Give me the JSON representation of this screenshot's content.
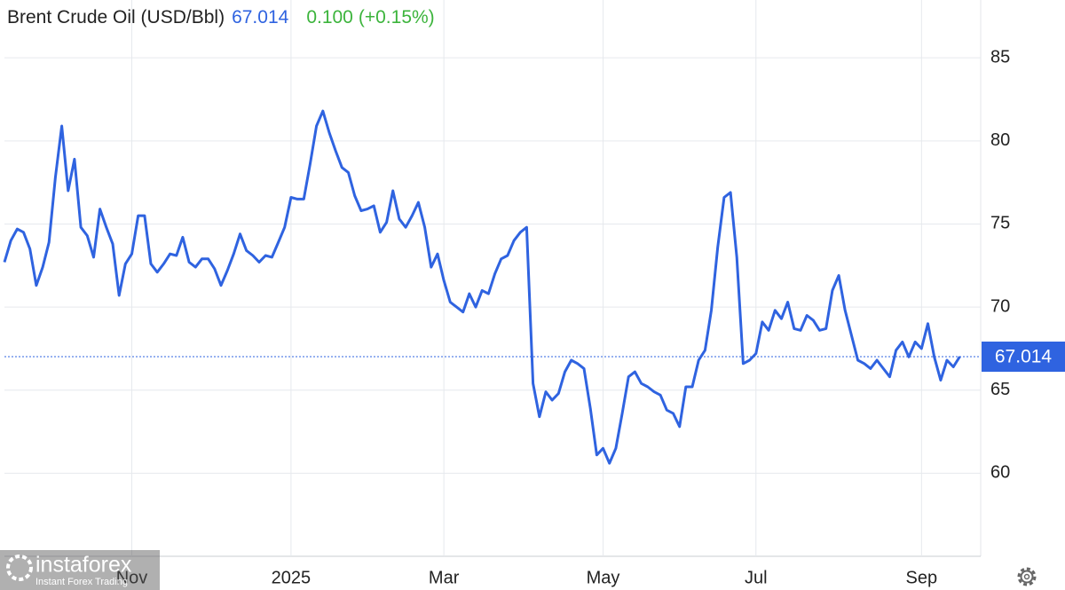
{
  "chart_data": {
    "type": "line",
    "title": "Brent Crude Oil (USD/Bbl)",
    "change": "0.100",
    "change_pct": "(+0.15%)",
    "watermark": {
      "brand": "instaforex",
      "tagline": "Instant Forex Trading"
    },
    "categories": [
      null,
      null,
      null,
      null,
      null,
      null,
      null,
      null,
      null,
      null,
      null,
      null,
      null,
      null,
      null,
      null,
      null,
      null,
      null,
      null,
      "Nov",
      null,
      null,
      null,
      null,
      null,
      null,
      null,
      null,
      null,
      null,
      null,
      null,
      null,
      null,
      null,
      null,
      null,
      null,
      null,
      null,
      null,
      null,
      null,
      null,
      "2025",
      null,
      null,
      null,
      null,
      null,
      null,
      null,
      null,
      null,
      null,
      null,
      null,
      null,
      null,
      null,
      null,
      null,
      null,
      null,
      null,
      null,
      null,
      null,
      "Mar",
      null,
      null,
      null,
      null,
      null,
      null,
      null,
      null,
      null,
      null,
      null,
      null,
      null,
      null,
      null,
      null,
      null,
      null,
      null,
      null,
      null,
      null,
      null,
      null,
      "May",
      null,
      null,
      null,
      null,
      null,
      null,
      null,
      null,
      null,
      null,
      null,
      null,
      null,
      null,
      null,
      null,
      null,
      null,
      null,
      null,
      null,
      null,
      null,
      "Jul",
      null,
      null,
      null,
      null,
      null,
      null,
      null,
      null,
      null,
      null,
      null,
      null,
      null,
      null,
      null,
      null,
      null,
      null,
      null,
      null,
      null,
      null,
      null,
      null,
      null,
      "Sep",
      null,
      null,
      null,
      null,
      null,
      null
    ],
    "series": [
      {
        "color": "#2f63e0",
        "values": [
          72.7,
          74.0,
          74.7,
          74.5,
          73.5,
          71.3,
          72.4,
          73.9,
          77.8,
          80.9,
          77.0,
          78.9,
          74.8,
          74.3,
          73.0,
          75.9,
          74.8,
          73.8,
          70.7,
          72.6,
          73.2,
          75.5,
          75.5,
          72.6,
          72.1,
          72.6,
          73.2,
          73.1,
          74.2,
          72.7,
          72.4,
          72.9,
          72.9,
          72.3,
          71.3,
          72.2,
          73.2,
          74.4,
          73.4,
          73.1,
          72.7,
          73.1,
          73.0,
          73.9,
          74.8,
          76.6,
          76.5,
          76.5,
          78.6,
          80.9,
          81.8,
          80.5,
          79.4,
          78.4,
          78.1,
          76.7,
          75.8,
          75.9,
          76.1,
          74.5,
          75.1,
          77.0,
          75.3,
          74.8,
          75.5,
          76.3,
          74.8,
          72.4,
          73.2,
          71.6,
          70.3,
          70.0,
          69.7,
          70.8,
          70.0,
          71.0,
          70.8,
          72.0,
          72.9,
          73.1,
          74.0,
          74.5,
          74.8,
          65.4,
          63.4,
          64.9,
          64.4,
          64.8,
          66.1,
          66.8,
          66.6,
          66.3,
          63.9,
          61.1,
          61.5,
          60.6,
          61.5,
          63.6,
          65.8,
          66.1,
          65.4,
          65.2,
          64.9,
          64.7,
          63.8,
          63.6,
          62.8,
          65.2,
          65.2,
          66.8,
          67.4,
          69.8,
          73.6,
          76.6,
          76.9,
          73.0,
          66.6,
          66.8,
          67.2,
          69.1,
          68.6,
          69.8,
          69.3,
          70.3,
          68.7,
          68.6,
          69.5,
          69.2,
          68.6,
          68.7,
          71.0,
          71.9,
          69.8,
          68.3,
          66.8,
          66.6,
          66.3,
          66.8,
          66.3,
          65.8,
          67.4,
          67.9,
          67.0,
          67.9,
          67.5,
          69.0,
          67.0,
          65.6,
          66.8,
          66.4,
          67.014
        ]
      }
    ],
    "ylim": [
      55,
      88
    ],
    "yticks": [
      60,
      65,
      70,
      75,
      80,
      85
    ],
    "grid": true
  }
}
